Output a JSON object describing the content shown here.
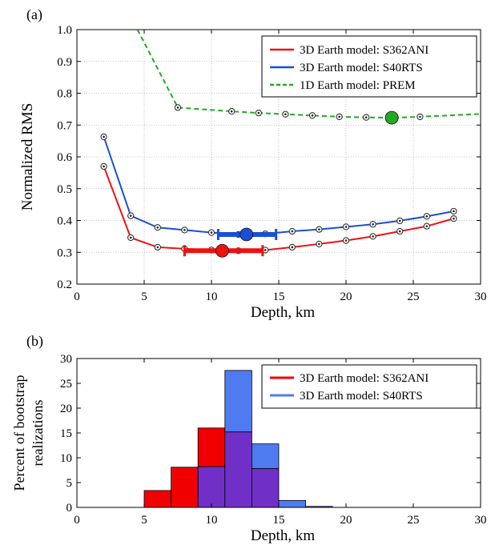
{
  "panels": {
    "a": {
      "label": "(a)"
    },
    "b": {
      "label": "(b)"
    }
  },
  "colors": {
    "red": "#ee1111",
    "blue": "#1a4fd6",
    "green": "#22aa22",
    "hist_blue": "#4f7bf0",
    "hist_red": "#f00000",
    "hist_overlap": "#7030c8"
  },
  "chart_data": [
    {
      "type": "line",
      "xlabel": "Depth, km",
      "ylabel": "Normalized RMS",
      "xlim": [
        0,
        30
      ],
      "ylim": [
        0.2,
        1.0
      ],
      "xticks": [
        "0",
        "5",
        "10",
        "15",
        "20",
        "25",
        "30"
      ],
      "yticks": [
        "0.2",
        "0.3",
        "0.4",
        "0.5",
        "0.6",
        "0.7",
        "0.8",
        "0.9",
        "1.0"
      ],
      "grid": true,
      "legend_position": "top-right",
      "series": [
        {
          "name": "3D Earth model: S362ANI",
          "color": "red",
          "style": "solid",
          "x": [
            2,
            4,
            6,
            8,
            10,
            12,
            14,
            16,
            18,
            20,
            22,
            24,
            26,
            28
          ],
          "y": [
            0.57,
            0.346,
            0.316,
            0.311,
            0.307,
            0.305,
            0.307,
            0.316,
            0.326,
            0.337,
            0.35,
            0.366,
            0.382,
            0.406
          ],
          "best": {
            "x": 10.8,
            "y": 0.305,
            "err_low": 8.0,
            "err_high": 13.8
          }
        },
        {
          "name": "3D Earth model: S40RTS",
          "color": "blue",
          "style": "solid",
          "x": [
            2,
            4,
            6,
            8,
            10,
            12,
            14,
            16,
            18,
            20,
            22,
            24,
            26,
            28
          ],
          "y": [
            0.663,
            0.415,
            0.378,
            0.37,
            0.362,
            0.356,
            0.358,
            0.366,
            0.372,
            0.38,
            0.388,
            0.399,
            0.413,
            0.429
          ],
          "best": {
            "x": 12.6,
            "y": 0.356,
            "err_low": 10.5,
            "err_high": 14.8
          }
        },
        {
          "name": "1D Earth model: PREM",
          "color": "green",
          "style": "dashed",
          "x": [
            4.5,
            7.5,
            9.5,
            11.5,
            13.5,
            15.5,
            17.5,
            19.5,
            21.5,
            23.5,
            25.5,
            30
          ],
          "y": [
            1.0,
            0.755,
            0.749,
            0.743,
            0.738,
            0.734,
            0.73,
            0.726,
            0.724,
            0.723,
            0.726,
            0.735
          ],
          "markers_x": [
            7.5,
            11.5,
            13.5,
            15.5,
            17.5,
            19.5,
            21.5,
            23.5,
            25.5
          ],
          "best": {
            "x": 23.4,
            "y": 0.723
          }
        }
      ]
    },
    {
      "type": "bar",
      "xlabel": "Depth, km",
      "ylabel_lines": [
        "Percent of bootstrap",
        "realizations"
      ],
      "xlim": [
        0,
        30
      ],
      "ylim": [
        0,
        30
      ],
      "xticks": [
        "0",
        "5",
        "10",
        "15",
        "20",
        "25",
        "30"
      ],
      "yticks": [
        "0",
        "5",
        "10",
        "15",
        "20",
        "25",
        "30"
      ],
      "grid": false,
      "legend_position": "top-right",
      "bin_edges": [
        5,
        7,
        9,
        11,
        13,
        15,
        17,
        19
      ],
      "series": [
        {
          "name": "3D Earth model: S362ANI",
          "color": "hist_red",
          "values": [
            3.4,
            8.1,
            16.0,
            15.2,
            7.8,
            0,
            0
          ]
        },
        {
          "name": "3D Earth model: S40RTS",
          "color": "hist_blue",
          "values": [
            0,
            0,
            8.2,
            27.6,
            12.8,
            1.4,
            0.2
          ]
        }
      ]
    }
  ]
}
